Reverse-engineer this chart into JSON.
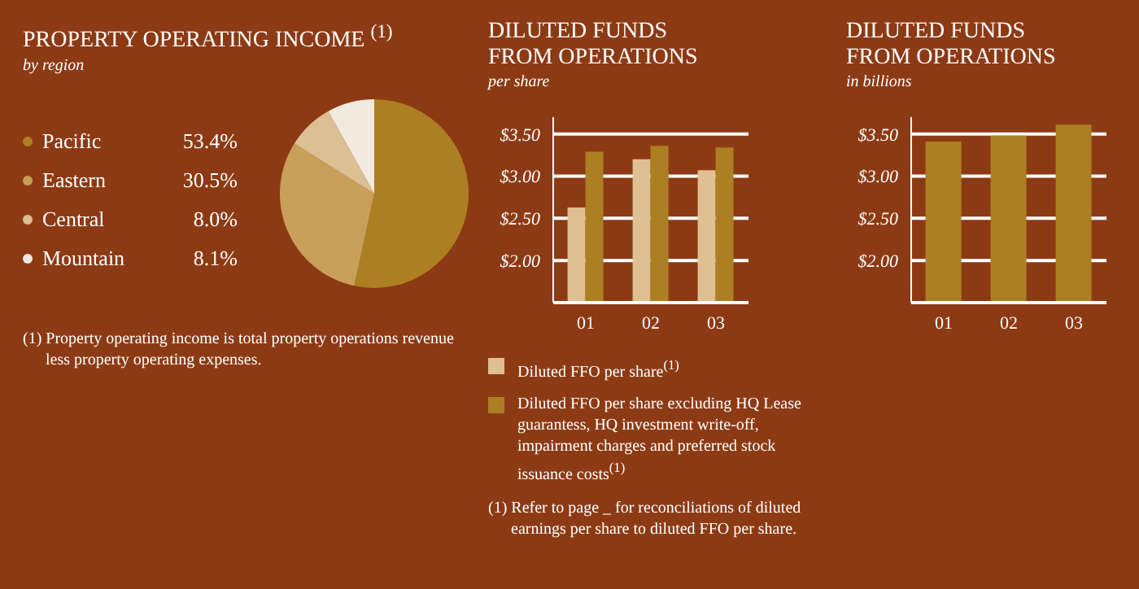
{
  "chart_data": [
    {
      "type": "pie",
      "title": "PROPERTY OPERATING INCOME $^{(1)}$",
      "subtitle": "by region",
      "categories": [
        "Pacific",
        "Eastern",
        "Central",
        "Mountain"
      ],
      "values": [
        53.4,
        30.5,
        8.0,
        8.1
      ],
      "colors": [
        "#ad7f23",
        "#c9a05a",
        "#dcbf92",
        "#f3e9df"
      ],
      "value_labels": [
        "53.4%",
        "30.5%",
        "8.0%",
        "8.1%"
      ],
      "legend": "left",
      "annotations": [
        "(1) Property operating income is total property operations revenue less property operating expenses."
      ]
    },
    {
      "type": "bar",
      "title": "DILUTED FUNDS FROM OPERATIONS",
      "subtitle": "per share",
      "categories": [
        "01",
        "02",
        "03"
      ],
      "series": [
        {
          "name": "Diluted FFO per share$^{(1)}$",
          "color": "#dfc092",
          "values": [
            2.63,
            3.2,
            3.07
          ]
        },
        {
          "name": "Diluted FFO per share excluding HQ Lease guarantess, HQ investment write-off, impairment charges and preferred stock issuance costs$^{(1)}$",
          "color": "#ad7f23",
          "values": [
            3.29,
            3.36,
            3.34
          ]
        }
      ],
      "ylim": [
        1.5,
        3.7
      ],
      "yticks": [
        {
          "value": 2,
          "label": "$2.00"
        },
        {
          "value": 2.5,
          "label": "$2.50"
        },
        {
          "value": 3,
          "label": "$3.00"
        },
        {
          "value": 3.5,
          "label": "$3.50"
        }
      ],
      "grid": "y",
      "legend": "bottom",
      "annotations": [
        "(1) Refer to page _ for reconciliations of diluted earnings per share to diluted FFO per share."
      ]
    },
    {
      "type": "bar",
      "title": "DILUTED FUNDS FROM OPERATIONS",
      "subtitle": "in billions",
      "categories": [
        "01",
        "02",
        "03"
      ],
      "values": [
        3.41,
        3.48,
        3.61
      ],
      "color": "#ad7f23",
      "ylim": [
        1.5,
        3.7
      ],
      "yticks": [
        {
          "value": 2,
          "label": "$2.00"
        },
        {
          "value": 2.5,
          "label": "$2.50"
        },
        {
          "value": 3,
          "label": "$3.00"
        },
        {
          "value": 3.5,
          "label": "$3.50"
        }
      ],
      "grid": "y"
    }
  ]
}
